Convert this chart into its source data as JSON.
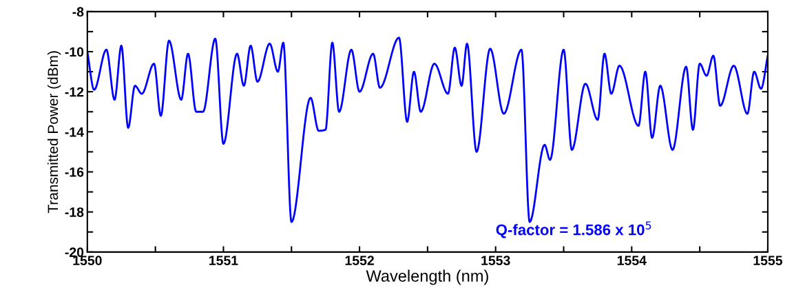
{
  "chart_data": {
    "type": "line",
    "xlabel": "Wavelength (nm)",
    "ylabel": "Transmitted Power (dBm)",
    "xlim": [
      1550,
      1555
    ],
    "ylim": [
      -20,
      -8
    ],
    "xticks": [
      1550,
      {
        "value": 1550.5,
        "label": null
      },
      1551,
      {
        "value": 1551.5,
        "label": null
      },
      1552,
      {
        "value": 1552.5,
        "label": null
      },
      1553,
      {
        "value": 1553.5,
        "label": null
      },
      1554,
      {
        "value": 1554.5,
        "label": null
      },
      1555
    ],
    "yticks": [
      -20,
      {
        "value": -19,
        "label": null
      },
      -18,
      {
        "value": -17,
        "label": null
      },
      -16,
      {
        "value": -15,
        "label": null
      },
      -14,
      {
        "value": -13,
        "label": null
      },
      -12,
      {
        "value": -11,
        "label": null
      },
      -10,
      {
        "value": -9,
        "label": null
      },
      -8
    ],
    "grid": false,
    "legend": false,
    "marker": "none",
    "line_style": "solid",
    "annotations": [
      "Q-factor = 1.586 x 10$^{5}$"
    ],
    "series": [
      {
        "color": "#0000ff",
        "x": [
          1550.0,
          1550.05,
          1550.14,
          1550.2,
          1550.25,
          1550.3,
          1550.35,
          1550.4,
          1550.49,
          1550.54,
          1550.6,
          1550.69,
          1550.74,
          1550.8,
          1550.85,
          1550.94,
          1551.0,
          1551.1,
          1551.15,
          1551.2,
          1551.25,
          1551.34,
          1551.4,
          1551.44,
          1551.5,
          1551.64,
          1551.7,
          1551.75,
          1551.8,
          1551.85,
          1551.94,
          1552.0,
          1552.1,
          1552.15,
          1552.29,
          1552.35,
          1552.4,
          1552.45,
          1552.55,
          1552.65,
          1552.7,
          1552.75,
          1552.79,
          1552.86,
          1552.96,
          1553.06,
          1553.19,
          1553.25,
          1553.36,
          1553.4,
          1553.5,
          1553.56,
          1553.66,
          1553.75,
          1553.8,
          1553.85,
          1553.91,
          1554.05,
          1554.1,
          1554.15,
          1554.21,
          1554.3,
          1554.4,
          1554.45,
          1554.5,
          1554.55,
          1554.6,
          1554.65,
          1554.75,
          1554.85,
          1554.9,
          1554.95,
          1555.0
        ],
        "values": [
          -10.0,
          -11.9,
          -9.9,
          -12.4,
          -9.7,
          -13.8,
          -11.7,
          -12.1,
          -10.6,
          -13.2,
          -9.45,
          -12.4,
          -10.1,
          -13.0,
          -13.0,
          -9.35,
          -14.6,
          -10.1,
          -11.7,
          -9.7,
          -11.5,
          -9.6,
          -11.0,
          -9.55,
          -18.5,
          -12.3,
          -13.95,
          -13.9,
          -9.55,
          -13.0,
          -9.9,
          -12.0,
          -10.1,
          -11.8,
          -9.3,
          -13.5,
          -11.0,
          -13.0,
          -10.6,
          -12.1,
          -9.8,
          -11.7,
          -9.6,
          -15.0,
          -9.85,
          -13.1,
          -9.9,
          -18.5,
          -14.65,
          -15.4,
          -9.9,
          -14.9,
          -11.6,
          -13.4,
          -10.1,
          -12.1,
          -10.7,
          -13.7,
          -11.0,
          -14.3,
          -11.7,
          -14.9,
          -10.75,
          -13.9,
          -10.6,
          -11.2,
          -10.2,
          -12.7,
          -10.7,
          -13.1,
          -11.0,
          -11.85,
          -10.2
        ]
      }
    ]
  }
}
